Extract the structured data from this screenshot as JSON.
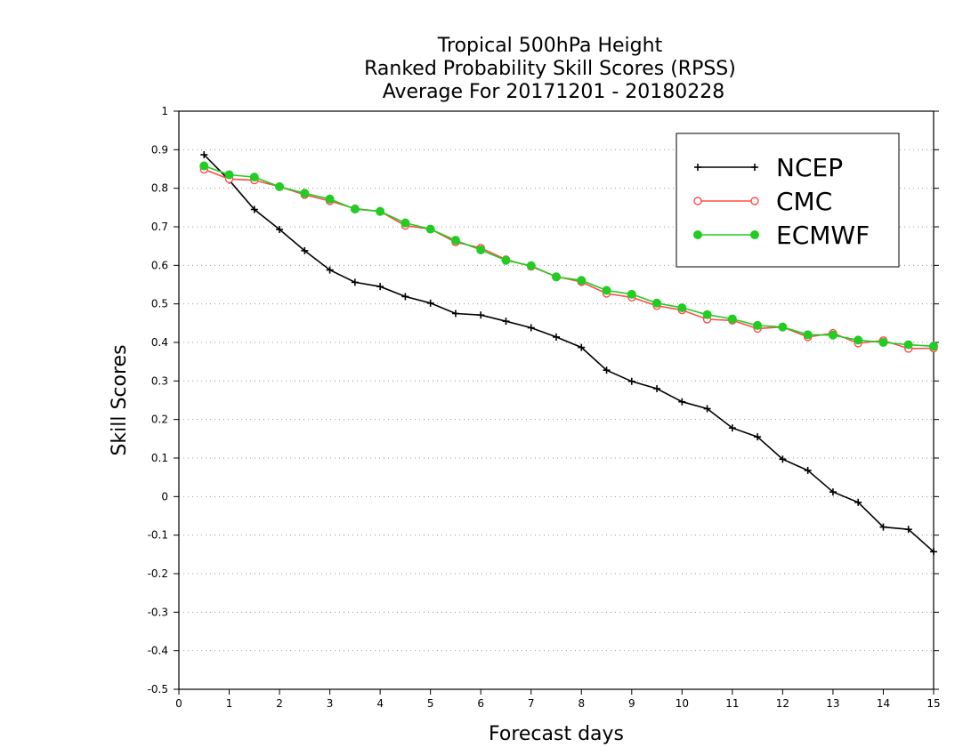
{
  "chart_data": {
    "type": "line",
    "title": [
      "Tropical 500hPa Height",
      "Ranked Probability Skill Scores (RPSS)",
      "Average For 20171201 - 20180228"
    ],
    "xlabel": "Forecast days",
    "ylabel": "Skill Scores",
    "xlim": [
      0,
      15
    ],
    "ylim": [
      -0.5,
      1
    ],
    "x_ticks": [
      "0",
      "1",
      "2",
      "3",
      "4",
      "5",
      "6",
      "7",
      "8",
      "9",
      "10",
      "11",
      "12",
      "13",
      "14",
      "15"
    ],
    "y_ticks": [
      "-0.5",
      "-0.4",
      "-0.3",
      "-0.2",
      "-0.1",
      "0",
      "0.1",
      "0.2",
      "0.3",
      "0.4",
      "0.5",
      "0.6",
      "0.7",
      "0.8",
      "0.9",
      "1"
    ],
    "grid": "horizontal dotted",
    "legend_position": "top-right",
    "x": [
      0.5,
      1,
      1.5,
      2,
      2.5,
      3,
      3.5,
      4,
      4.5,
      5,
      5.5,
      6,
      6.5,
      7,
      7.5,
      8,
      8.5,
      9,
      9.5,
      10,
      10.5,
      11,
      11.5,
      12,
      12.5,
      13,
      13.5,
      14,
      14.5,
      15
    ],
    "series": [
      {
        "name": "NCEP",
        "color": "#000000",
        "marker": "plus",
        "values": [
          0.887,
          0.821,
          0.745,
          0.693,
          0.638,
          0.588,
          0.556,
          0.545,
          0.519,
          0.502,
          0.475,
          0.471,
          0.455,
          0.438,
          0.414,
          0.387,
          0.328,
          0.299,
          0.28,
          0.246,
          0.228,
          0.178,
          0.155,
          0.097,
          0.068,
          0.012,
          -0.015,
          -0.079,
          -0.085,
          -0.143
        ]
      },
      {
        "name": "CMC",
        "color": "#ff4b4b",
        "marker": "open-circle",
        "values": [
          0.849,
          0.824,
          0.821,
          0.804,
          0.783,
          0.767,
          0.747,
          0.74,
          0.703,
          0.694,
          0.66,
          0.645,
          0.615,
          0.597,
          0.571,
          0.557,
          0.527,
          0.517,
          0.495,
          0.484,
          0.46,
          0.457,
          0.436,
          0.44,
          0.414,
          0.424,
          0.398,
          0.405,
          0.384,
          0.385
        ]
      },
      {
        "name": "ECMWF",
        "color": "#22cc22",
        "marker": "filled-circle",
        "values": [
          0.858,
          0.835,
          0.829,
          0.804,
          0.787,
          0.772,
          0.746,
          0.74,
          0.71,
          0.694,
          0.665,
          0.64,
          0.613,
          0.599,
          0.57,
          0.561,
          0.535,
          0.525,
          0.502,
          0.49,
          0.472,
          0.461,
          0.444,
          0.44,
          0.42,
          0.419,
          0.406,
          0.4,
          0.394,
          0.39
        ]
      }
    ]
  }
}
